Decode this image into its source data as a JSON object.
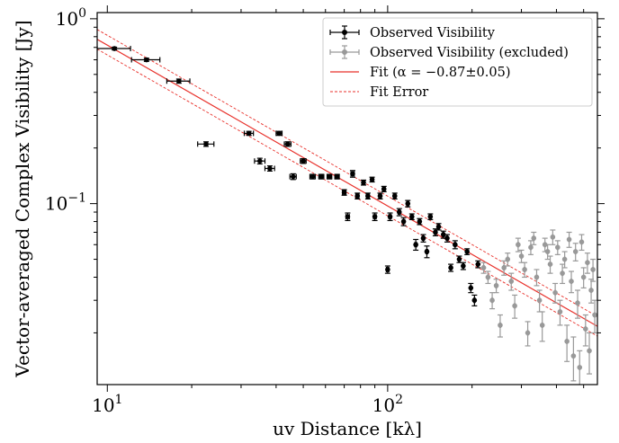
{
  "chart_data": {
    "type": "scatter",
    "xlabel": "uv Distance [kλ]",
    "ylabel": "Vector-averaged Complex Visibility [Jy]",
    "xscale": "log",
    "yscale": "log",
    "xlim": [
      9.2,
      560
    ],
    "ylim": [
      0.0105,
      1.08
    ],
    "x_ticks": [
      {
        "value": 10,
        "base": "10",
        "exp": "1"
      },
      {
        "value": 100,
        "base": "10",
        "exp": "2"
      }
    ],
    "y_ticks": [
      {
        "value": 1.0,
        "label": "10",
        "exp": "0"
      },
      {
        "value": 0.1,
        "label": "10",
        "exp": "−1"
      }
    ],
    "grid": false,
    "legend_position": "top-right",
    "legend": [
      {
        "key": "observed",
        "label": "Observed Visibility",
        "color": "#000000",
        "style": "errorbar"
      },
      {
        "key": "excluded",
        "label": "Observed Visibility (excluded)",
        "color": "#999999",
        "style": "errorbar"
      },
      {
        "key": "fit",
        "label": "Fit (α = −0.87±0.05)",
        "color": "#e8312b",
        "style": "line"
      },
      {
        "key": "fit_error",
        "label": "Fit Error",
        "color": "#e8312b",
        "style": "dashed"
      }
    ],
    "fit": {
      "amplitude_at_10": 0.72,
      "alpha": -0.87,
      "alpha_err": 0.05,
      "band_factor": 1.13
    },
    "series": [
      {
        "key": "observed",
        "color": "#000000",
        "points": [
          [
            10.6,
            0.69,
            1.5,
            0.012
          ],
          [
            13.8,
            0.6,
            1.6,
            0.012
          ],
          [
            18.0,
            0.46,
            1.7,
            0.012
          ],
          [
            22.5,
            0.21,
            1.5,
            0.006
          ],
          [
            32.0,
            0.24,
            1.2,
            0.006
          ],
          [
            35.0,
            0.17,
            1.5,
            0.006
          ],
          [
            38.0,
            0.155,
            1.5,
            0.005
          ],
          [
            41.0,
            0.24,
            1.0,
            0.006
          ],
          [
            44.0,
            0.21,
            1.2,
            0.006
          ],
          [
            46.0,
            0.14,
            1.2,
            0.005
          ],
          [
            50.0,
            0.17,
            1.2,
            0.005
          ],
          [
            54.0,
            0.14,
            1.2,
            0.004
          ],
          [
            58.0,
            0.14,
            1.2,
            0.004
          ],
          [
            62.0,
            0.14,
            1.2,
            0.004
          ],
          [
            66.0,
            0.14,
            1.2,
            0.004
          ],
          [
            70.0,
            0.115,
            1.0,
            0.004
          ],
          [
            72.0,
            0.085,
            1.0,
            0.004
          ],
          [
            75.0,
            0.145,
            1.0,
            0.006
          ],
          [
            78.0,
            0.11,
            1.0,
            0.004
          ],
          [
            82.0,
            0.13,
            1.0,
            0.004
          ],
          [
            85.0,
            0.11,
            1.0,
            0.004
          ],
          [
            88.0,
            0.135,
            1.0,
            0.004
          ],
          [
            90.0,
            0.085,
            1.0,
            0.004
          ],
          [
            94.0,
            0.11,
            1.0,
            0.004
          ],
          [
            97.0,
            0.12,
            1.0,
            0.004
          ],
          [
            100.0,
            0.044,
            1.0,
            0.002
          ],
          [
            102.0,
            0.085,
            1.0,
            0.004
          ],
          [
            106.0,
            0.11,
            1.0,
            0.004
          ],
          [
            110.0,
            0.09,
            1.0,
            0.004
          ],
          [
            114.0,
            0.08,
            1.0,
            0.004
          ],
          [
            118.0,
            0.1,
            1.0,
            0.004
          ],
          [
            122.0,
            0.085,
            1.0,
            0.003
          ],
          [
            126.0,
            0.06,
            1.0,
            0.004
          ],
          [
            130.0,
            0.08,
            1.0,
            0.003
          ],
          [
            134.0,
            0.065,
            1.0,
            0.003
          ],
          [
            138.0,
            0.055,
            1.0,
            0.004
          ],
          [
            142.0,
            0.085,
            1.0,
            0.003
          ],
          [
            148.0,
            0.07,
            1.0,
            0.003
          ],
          [
            152.0,
            0.075,
            1.0,
            0.003
          ],
          [
            158.0,
            0.068,
            1.0,
            0.003
          ],
          [
            163.0,
            0.065,
            1.0,
            0.003
          ],
          [
            168.0,
            0.045,
            1.0,
            0.002
          ],
          [
            174.0,
            0.06,
            1.0,
            0.003
          ],
          [
            180.0,
            0.05,
            1.0,
            0.002
          ],
          [
            186.0,
            0.046,
            1.0,
            0.002
          ],
          [
            192.0,
            0.055,
            1.0,
            0.002
          ],
          [
            198.0,
            0.035,
            1.0,
            0.002
          ],
          [
            204.0,
            0.03,
            1.0,
            0.002
          ],
          [
            210.0,
            0.047,
            1.0,
            0.002
          ]
        ]
      },
      {
        "key": "excluded",
        "color": "#999999",
        "points": [
          [
            220,
            0.045,
            1.0,
            0.003
          ],
          [
            228,
            0.04,
            1.0,
            0.003
          ],
          [
            236,
            0.03,
            1.0,
            0.003
          ],
          [
            244,
            0.036,
            1.0,
            0.003
          ],
          [
            252,
            0.022,
            1.0,
            0.003
          ],
          [
            260,
            0.045,
            1.0,
            0.004
          ],
          [
            268,
            0.05,
            1.0,
            0.004
          ],
          [
            276,
            0.038,
            1.0,
            0.004
          ],
          [
            284,
            0.028,
            1.0,
            0.004
          ],
          [
            292,
            0.06,
            1.0,
            0.005
          ],
          [
            300,
            0.052,
            1.0,
            0.004
          ],
          [
            308,
            0.044,
            1.0,
            0.004
          ],
          [
            316,
            0.02,
            1.0,
            0.003
          ],
          [
            324,
            0.058,
            1.0,
            0.005
          ],
          [
            332,
            0.065,
            1.0,
            0.005
          ],
          [
            340,
            0.04,
            1.0,
            0.004
          ],
          [
            348,
            0.03,
            1.0,
            0.004
          ],
          [
            356,
            0.022,
            1.0,
            0.004
          ],
          [
            364,
            0.06,
            1.0,
            0.005
          ],
          [
            372,
            0.055,
            1.0,
            0.005
          ],
          [
            380,
            0.047,
            1.0,
            0.005
          ],
          [
            388,
            0.066,
            1.0,
            0.006
          ],
          [
            396,
            0.033,
            1.0,
            0.004
          ],
          [
            404,
            0.058,
            1.0,
            0.005
          ],
          [
            412,
            0.026,
            1.0,
            0.004
          ],
          [
            420,
            0.042,
            1.0,
            0.005
          ],
          [
            428,
            0.05,
            1.0,
            0.005
          ],
          [
            436,
            0.018,
            1.0,
            0.004
          ],
          [
            444,
            0.064,
            1.0,
            0.006
          ],
          [
            452,
            0.038,
            1.0,
            0.005
          ],
          [
            460,
            0.015,
            1.0,
            0.004
          ],
          [
            468,
            0.055,
            1.0,
            0.006
          ],
          [
            476,
            0.029,
            1.0,
            0.005
          ],
          [
            484,
            0.013,
            1.0,
            0.003
          ],
          [
            492,
            0.062,
            1.0,
            0.006
          ],
          [
            500,
            0.04,
            1.0,
            0.005
          ],
          [
            508,
            0.021,
            1.0,
            0.004
          ],
          [
            516,
            0.048,
            1.0,
            0.006
          ],
          [
            524,
            0.016,
            1.0,
            0.004
          ],
          [
            532,
            0.034,
            1.0,
            0.005
          ],
          [
            540,
            0.044,
            1.0,
            0.006
          ],
          [
            548,
            0.025,
            1.0,
            0.005
          ]
        ]
      }
    ]
  }
}
